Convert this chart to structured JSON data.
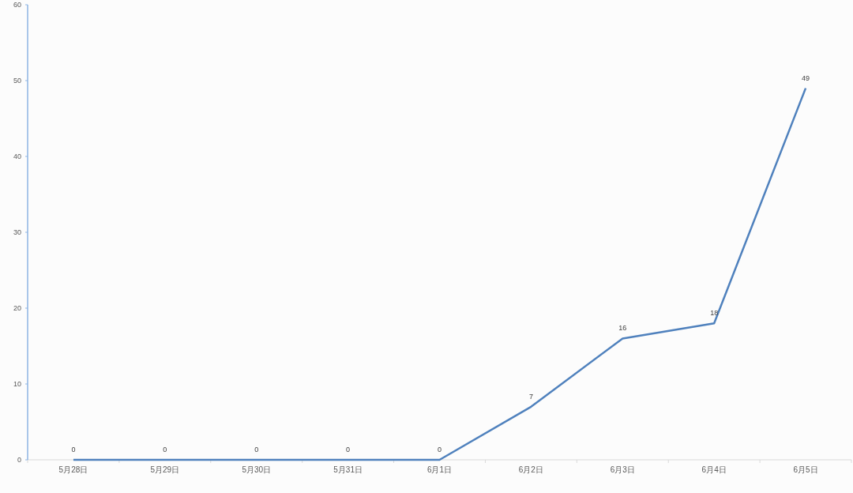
{
  "chart_data": {
    "type": "line",
    "categories": [
      "5月28日",
      "5月29日",
      "5月30日",
      "5月31日",
      "6月1日",
      "6月2日",
      "6月3日",
      "6月4日",
      "6月5日"
    ],
    "series": [
      {
        "color": "#4f81bd",
        "values": [
          0,
          0,
          0,
          0,
          0,
          7,
          16,
          18,
          49
        ]
      }
    ],
    "ylim": [
      0,
      60
    ],
    "yticks": [
      0,
      10,
      20,
      30,
      40,
      50,
      60
    ],
    "grid": false,
    "marker": "none",
    "data_labels": true
  }
}
